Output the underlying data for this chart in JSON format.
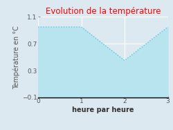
{
  "title": "Evolution de la température",
  "title_color": "#ff0000",
  "xlabel": "heure par heure",
  "ylabel": "Température en °C",
  "x": [
    0,
    1,
    2,
    3
  ],
  "y": [
    0.95,
    0.95,
    0.45,
    0.95
  ],
  "xlim": [
    0,
    3
  ],
  "ylim": [
    -0.1,
    1.1
  ],
  "xticks": [
    0,
    1,
    2,
    3
  ],
  "yticks": [
    -0.1,
    0.3,
    0.7,
    1.1
  ],
  "line_color": "#5bc8d8",
  "fill_color": "#b8e4ef",
  "bg_color": "#dce9f0",
  "plot_bg_color": "#dce9f0",
  "grid_color": "#ffffff",
  "tick_color": "#555555",
  "title_fontsize": 8.5,
  "label_fontsize": 7,
  "tick_fontsize": 6.5
}
